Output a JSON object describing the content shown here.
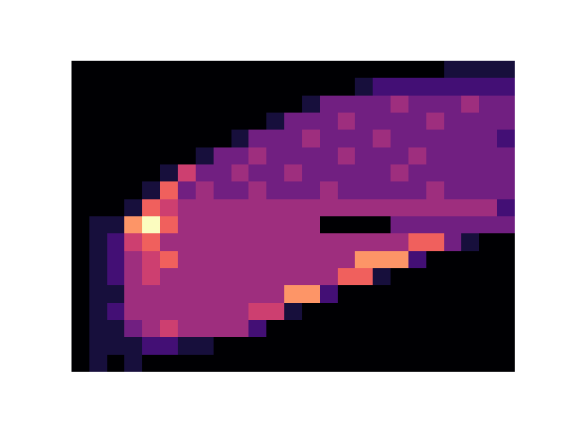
{
  "chart_data": {
    "type": "heatmap",
    "color": "magma",
    "tick_labels": false,
    "cells": [
      [
        0,
        0,
        0,
        0,
        0,
        0,
        0,
        0,
        0,
        0,
        0,
        0,
        0,
        0,
        0,
        0,
        0,
        0,
        0,
        0,
        0,
        1,
        1,
        1,
        1
      ],
      [
        0,
        0,
        0,
        0,
        0,
        0,
        0,
        0,
        0,
        0,
        0,
        0,
        0,
        0,
        0,
        0,
        1,
        2,
        2,
        2,
        2,
        2,
        2,
        2,
        2
      ],
      [
        0,
        0,
        0,
        0,
        0,
        0,
        0,
        0,
        0,
        0,
        0,
        0,
        0,
        1,
        3,
        3,
        3,
        3,
        4,
        3,
        3,
        3,
        4,
        3,
        3
      ],
      [
        0,
        0,
        0,
        0,
        0,
        0,
        0,
        0,
        0,
        0,
        0,
        1,
        3,
        3,
        3,
        4,
        3,
        3,
        3,
        3,
        4,
        3,
        3,
        3,
        3
      ],
      [
        0,
        0,
        0,
        0,
        0,
        0,
        0,
        0,
        0,
        1,
        3,
        3,
        3,
        4,
        3,
        3,
        3,
        4,
        3,
        3,
        3,
        3,
        3,
        3,
        2
      ],
      [
        0,
        0,
        0,
        0,
        0,
        0,
        0,
        1,
        3,
        3,
        4,
        3,
        3,
        3,
        3,
        4,
        3,
        3,
        3,
        4,
        3,
        3,
        3,
        3,
        3
      ],
      [
        0,
        0,
        0,
        0,
        0,
        1,
        5,
        3,
        3,
        4,
        3,
        3,
        4,
        3,
        3,
        3,
        3,
        3,
        4,
        3,
        3,
        3,
        3,
        3,
        3
      ],
      [
        0,
        0,
        0,
        0,
        1,
        6,
        3,
        4,
        3,
        3,
        4,
        3,
        3,
        3,
        4,
        3,
        3,
        3,
        3,
        3,
        4,
        3,
        3,
        3,
        3
      ],
      [
        0,
        0,
        0,
        1,
        6,
        5,
        4,
        4,
        4,
        4,
        4,
        4,
        4,
        4,
        4,
        4,
        4,
        4,
        4,
        4,
        4,
        4,
        4,
        4,
        2
      ],
      [
        0,
        1,
        1,
        7,
        9,
        6,
        4,
        4,
        4,
        4,
        4,
        4,
        4,
        4,
        0,
        0,
        0,
        0,
        3,
        3,
        3,
        3,
        3,
        3,
        3
      ],
      [
        0,
        1,
        2,
        5,
        6,
        4,
        4,
        4,
        4,
        4,
        4,
        4,
        4,
        4,
        4,
        4,
        4,
        4,
        4,
        6,
        6,
        3,
        1,
        0,
        0
      ],
      [
        0,
        1,
        2,
        4,
        5,
        6,
        4,
        4,
        4,
        4,
        4,
        4,
        4,
        4,
        4,
        4,
        7,
        7,
        7,
        2,
        0,
        0,
        0,
        0,
        0
      ],
      [
        0,
        1,
        2,
        4,
        5,
        4,
        4,
        4,
        4,
        4,
        4,
        4,
        4,
        4,
        4,
        6,
        6,
        1,
        0,
        0,
        0,
        0,
        0,
        0,
        0
      ],
      [
        0,
        1,
        1,
        4,
        4,
        4,
        4,
        4,
        4,
        4,
        4,
        4,
        7,
        7,
        2,
        0,
        0,
        0,
        0,
        0,
        0,
        0,
        0,
        0,
        0
      ],
      [
        0,
        1,
        2,
        4,
        4,
        4,
        4,
        4,
        4,
        4,
        5,
        5,
        1,
        0,
        0,
        0,
        0,
        0,
        0,
        0,
        0,
        0,
        0,
        0,
        0
      ],
      [
        0,
        1,
        1,
        3,
        4,
        5,
        4,
        4,
        4,
        4,
        2,
        0,
        0,
        0,
        0,
        0,
        0,
        0,
        0,
        0,
        0,
        0,
        0,
        0,
        0
      ],
      [
        0,
        1,
        1,
        1,
        2,
        2,
        1,
        1,
        0,
        0,
        0,
        0,
        0,
        0,
        0,
        0,
        0,
        0,
        0,
        0,
        0,
        0,
        0,
        0,
        0
      ],
      [
        0,
        1,
        0,
        1,
        0,
        0,
        0,
        0,
        0,
        0,
        0,
        0,
        0,
        0,
        0,
        0,
        0,
        0,
        0,
        0,
        0,
        0,
        0,
        0,
        0
      ]
    ]
  }
}
